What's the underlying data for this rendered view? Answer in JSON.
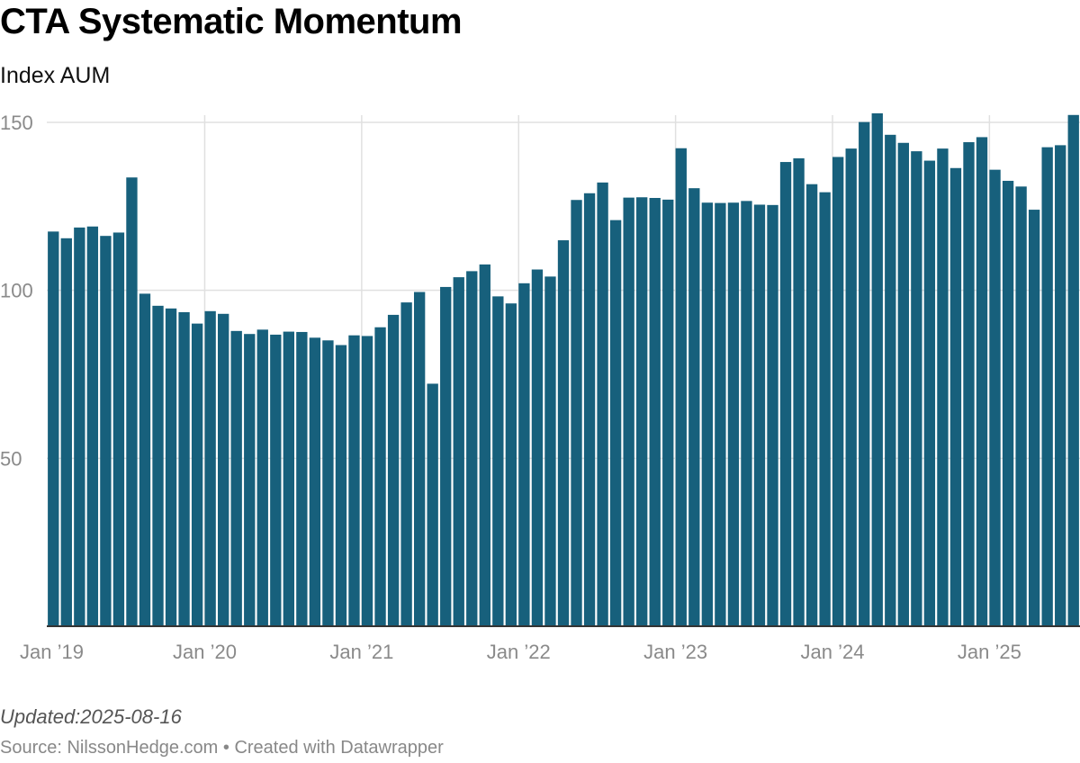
{
  "title": "CTA Systematic Momentum",
  "subtitle": "Index AUM",
  "updated": "Updated:2025-08-16",
  "source": "Source: NilssonHedge.com • Created with Datawrapper",
  "colors": {
    "bar": "#17607c",
    "grid": "#e0e0e0",
    "axis": "#333333"
  },
  "chart_data": {
    "type": "bar",
    "title": "CTA Systematic Momentum",
    "subtitle": "Index AUM",
    "xlabel": "",
    "ylabel": "",
    "ylim": [
      0,
      150
    ],
    "y_ticks": [
      50,
      100,
      150
    ],
    "x_ticks": [
      {
        "label": "Jan ’19",
        "index": 0
      },
      {
        "label": "Jan ’20",
        "index": 12
      },
      {
        "label": "Jan ’21",
        "index": 24
      },
      {
        "label": "Jan ’22",
        "index": 36
      },
      {
        "label": "Jan ’23",
        "index": 48
      },
      {
        "label": "Jan ’24",
        "index": 60
      },
      {
        "label": "Jan ’25",
        "index": 72
      }
    ],
    "grid": true,
    "start_month": "2019-01",
    "values": [
      117.5,
      115.5,
      118.7,
      119,
      116.2,
      117.2,
      133.6,
      99,
      95.4,
      94.6,
      93.5,
      90.1,
      93.8,
      93,
      87.9,
      87,
      88.3,
      86.8,
      87.7,
      87.6,
      85.9,
      85.1,
      83.7,
      86.6,
      86.4,
      89,
      92.7,
      96.4,
      99.5,
      72.2,
      101,
      103.9,
      105.7,
      107.7,
      98.2,
      96.1,
      102.1,
      106.2,
      104.1,
      114.9,
      126.9,
      128.9,
      132.1,
      120.9,
      127.6,
      127.7,
      127.5,
      127,
      142.3,
      130.4,
      126.1,
      126,
      126.1,
      126.6,
      125.5,
      125.4,
      138.2,
      139.3,
      131.6,
      129.2,
      139.7,
      142.2,
      150.1,
      152.7,
      146.3,
      143.9,
      141.4,
      138.6,
      142.2,
      136.4,
      144.1,
      145.6,
      135.9,
      132.6,
      130.9,
      124,
      142.6,
      143.2,
      152.2
    ]
  }
}
